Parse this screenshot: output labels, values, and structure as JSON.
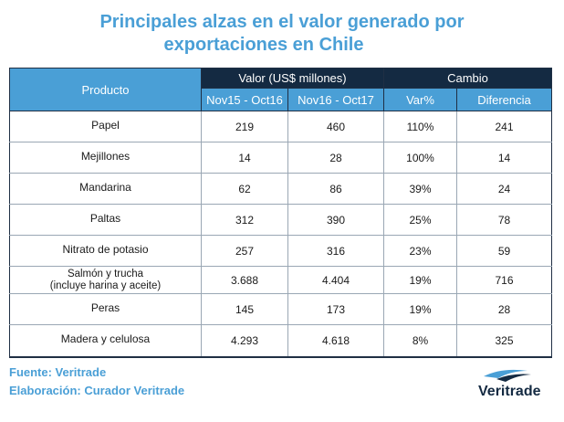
{
  "title": {
    "line1": "Principales alzas en el valor generado por",
    "line2": "exportaciones en Chile"
  },
  "table": {
    "header_producto": "Producto",
    "header_valor": "Valor (US$ millones)",
    "header_cambio": "Cambio",
    "sub_headers": [
      "Nov15 - Oct16",
      "Nov16 - Oct17",
      "Var%",
      "Diferencia"
    ]
  },
  "chart_data": {
    "type": "table",
    "title": "Principales alzas en el valor generado por exportaciones en Chile",
    "columns": [
      "Producto",
      "Nov15 - Oct16",
      "Nov16 - Oct17",
      "Var%",
      "Diferencia"
    ],
    "rows": [
      {
        "producto": "Papel",
        "sub": "",
        "v1": "219",
        "v2": "460",
        "var": "110%",
        "dif": "241"
      },
      {
        "producto": "Mejillones",
        "sub": "",
        "v1": "14",
        "v2": "28",
        "var": "100%",
        "dif": "14"
      },
      {
        "producto": "Mandarina",
        "sub": "",
        "v1": "62",
        "v2": "86",
        "var": "39%",
        "dif": "24"
      },
      {
        "producto": "Paltas",
        "sub": "",
        "v1": "312",
        "v2": "390",
        "var": "25%",
        "dif": "78"
      },
      {
        "producto": "Nitrato de potasio",
        "sub": "",
        "v1": "257",
        "v2": "316",
        "var": "23%",
        "dif": "59"
      },
      {
        "producto": "Salmón y trucha",
        "sub": "(incluye harina y aceite)",
        "v1": "3.688",
        "v2": "4.404",
        "var": "19%",
        "dif": "716"
      },
      {
        "producto": "Peras",
        "sub": "",
        "v1": "145",
        "v2": "173",
        "var": "19%",
        "dif": "28"
      },
      {
        "producto": "Madera y celulosa",
        "sub": "",
        "v1": "4.293",
        "v2": "4.618",
        "var": "8%",
        "dif": "325"
      }
    ]
  },
  "footer": {
    "fuente": "Fuente: Veritrade",
    "elaboracion": "Elaboración: Curador Veritrade"
  },
  "logo": {
    "text": "Veritrade",
    "icon": "veritrade-swoosh-icon"
  },
  "colors": {
    "accent": "#4a9fd6",
    "dark_header": "#142a42",
    "text": "#1a1a1a"
  }
}
